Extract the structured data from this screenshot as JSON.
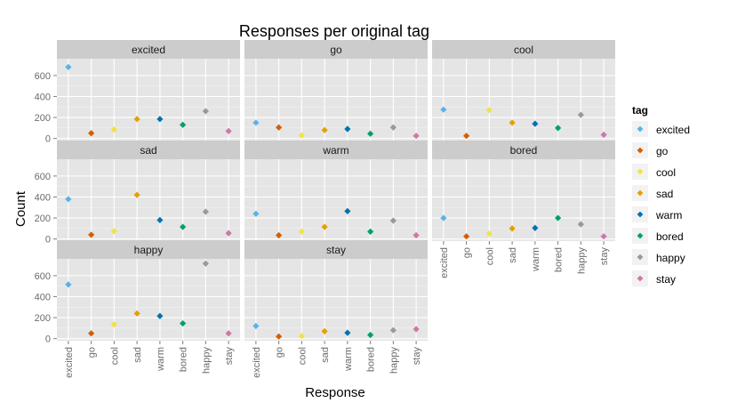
{
  "chart_data": {
    "type": "scatter",
    "title": "Responses per original tag",
    "xlabel": "Response",
    "ylabel": "Count",
    "categories": [
      "excited",
      "go",
      "cool",
      "sad",
      "warm",
      "bored",
      "happy",
      "stay"
    ],
    "y_ticks": [
      0,
      200,
      400,
      600
    ],
    "ylim": [
      -20,
      760
    ],
    "grid": true,
    "legend": {
      "title": "tag",
      "position": "right",
      "entries": [
        "excited",
        "go",
        "cool",
        "sad",
        "warm",
        "bored",
        "happy",
        "stay"
      ]
    },
    "colors": {
      "excited": "#56B4E9",
      "go": "#D55E00",
      "cool": "#F0E442",
      "sad": "#E69F00",
      "warm": "#0072B2",
      "bored": "#009E73",
      "happy": "#999999",
      "stay": "#CC79A7"
    },
    "panels": [
      {
        "name": "excited",
        "values": [
          680,
          50,
          85,
          185,
          185,
          130,
          260,
          70
        ]
      },
      {
        "name": "go",
        "values": [
          150,
          105,
          30,
          80,
          90,
          45,
          105,
          25
        ]
      },
      {
        "name": "cool",
        "values": [
          275,
          25,
          270,
          150,
          140,
          100,
          225,
          35
        ]
      },
      {
        "name": "sad",
        "values": [
          380,
          40,
          75,
          420,
          180,
          115,
          260,
          55
        ]
      },
      {
        "name": "warm",
        "values": [
          240,
          35,
          70,
          115,
          265,
          70,
          175,
          35
        ]
      },
      {
        "name": "bored",
        "values": [
          200,
          25,
          50,
          100,
          105,
          200,
          140,
          25
        ]
      },
      {
        "name": "happy",
        "values": [
          515,
          50,
          135,
          240,
          215,
          145,
          715,
          50
        ]
      },
      {
        "name": "stay",
        "values": [
          120,
          20,
          25,
          70,
          55,
          35,
          80,
          90
        ]
      }
    ]
  }
}
